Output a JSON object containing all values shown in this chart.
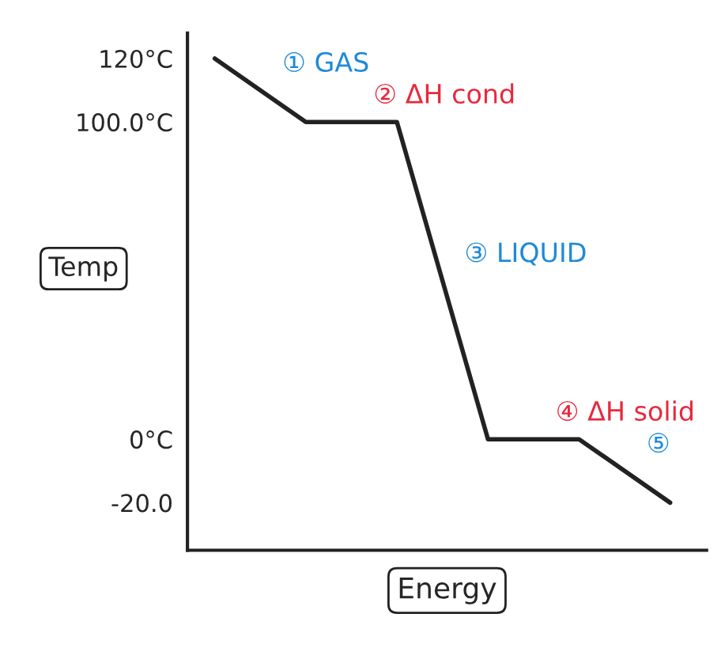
{
  "chart_data": {
    "type": "line",
    "xlabel": "Energy",
    "ylabel": "Temp",
    "categories": [
      null,
      null,
      null,
      null,
      null,
      null
    ],
    "series": [
      {
        "color": "#222222",
        "values": [
          120,
          100,
          100,
          0,
          0,
          -20
        ]
      }
    ],
    "ylim": [
      -35,
      128
    ],
    "yticks": [
      {
        "value": 120,
        "label": "120°C"
      },
      {
        "value": 100,
        "label": "100.0°C"
      },
      {
        "value": 0,
        "label": "0°C"
      },
      {
        "value": -20,
        "label": "-20.0"
      }
    ],
    "annotations": [
      "① GAS",
      "② ΔH cond",
      "③ LIQUID",
      "④ ΔH solid",
      "⑤"
    ],
    "grid": false,
    "marker": "none",
    "line_style": "solid",
    "tick_labels": "y"
  }
}
